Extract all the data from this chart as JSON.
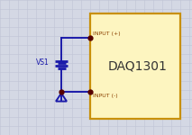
{
  "bg_color": "#d4d8e4",
  "grid_color": "#bfc4d4",
  "box_color": "#fdf5c0",
  "box_edge_color": "#c8900a",
  "wire_color": "#1a1aaa",
  "text_color_label": "#8b4000",
  "text_color_daq": "#333333",
  "dot_color": "#550000",
  "ground_color": "#1a1aaa",
  "daq_label": "DAQ1301",
  "input_pos_label": "INPUT (+)",
  "input_neg_label": "INPUT (-)",
  "vs1_label": "VS1",
  "figw": 2.13,
  "figh": 1.5,
  "dpi": 100
}
